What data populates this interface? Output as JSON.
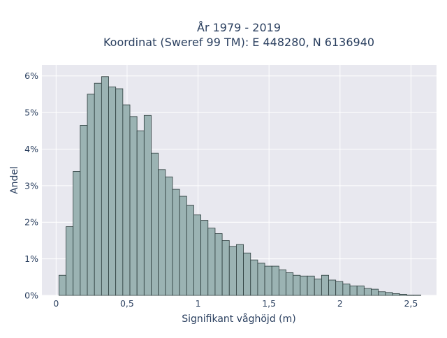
{
  "chart_data": {
    "type": "histogram",
    "title_lines": [
      "År 1979 - 2019",
      "Koordinat (Sweref 99 TM): E 448280, N 6136940"
    ],
    "xlabel": "Signifikant våghöjd (m)",
    "ylabel": "Andel",
    "xlim": [
      -0.1,
      2.68
    ],
    "ylim": [
      0,
      6.3
    ],
    "bin_width": 0.05,
    "bin_starts": [
      0.02,
      0.07,
      0.12,
      0.17,
      0.22,
      0.27,
      0.32,
      0.37,
      0.42,
      0.47,
      0.52,
      0.57,
      0.62,
      0.67,
      0.72,
      0.77,
      0.82,
      0.87,
      0.92,
      0.97,
      1.02,
      1.07,
      1.12,
      1.17,
      1.22,
      1.27,
      1.32,
      1.37,
      1.42,
      1.47,
      1.52,
      1.57,
      1.62,
      1.67,
      1.72,
      1.77,
      1.82,
      1.87,
      1.92,
      1.97,
      2.02,
      2.07,
      2.12,
      2.17,
      2.22,
      2.27,
      2.32,
      2.37,
      2.42,
      2.47,
      2.52
    ],
    "values": [
      0.55,
      1.88,
      3.39,
      4.65,
      5.5,
      5.8,
      5.98,
      5.7,
      5.65,
      5.21,
      4.89,
      4.5,
      4.92,
      3.89,
      3.44,
      3.24,
      2.9,
      2.71,
      2.46,
      2.2,
      2.05,
      1.84,
      1.69,
      1.5,
      1.34,
      1.39,
      1.16,
      0.97,
      0.88,
      0.8,
      0.8,
      0.7,
      0.62,
      0.55,
      0.53,
      0.53,
      0.45,
      0.55,
      0.42,
      0.38,
      0.31,
      0.26,
      0.26,
      0.19,
      0.17,
      0.1,
      0.08,
      0.05,
      0.03,
      0.01,
      0.01
    ],
    "x_ticks": [
      0,
      0.5,
      1,
      1.5,
      2,
      2.5
    ],
    "x_tick_labels": [
      "0",
      "0,5",
      "1",
      "1,5",
      "2",
      "2,5"
    ],
    "y_ticks": [
      0,
      1,
      2,
      3,
      4,
      5,
      6
    ],
    "y_tick_labels": [
      "0%",
      "1%",
      "2%",
      "3%",
      "4%",
      "5%",
      "6%"
    ],
    "grid": true,
    "bar_color": "#9bb3b3",
    "bar_edge_color": "#2b3b3b",
    "plot_bg_color": "#e8e8ef"
  }
}
